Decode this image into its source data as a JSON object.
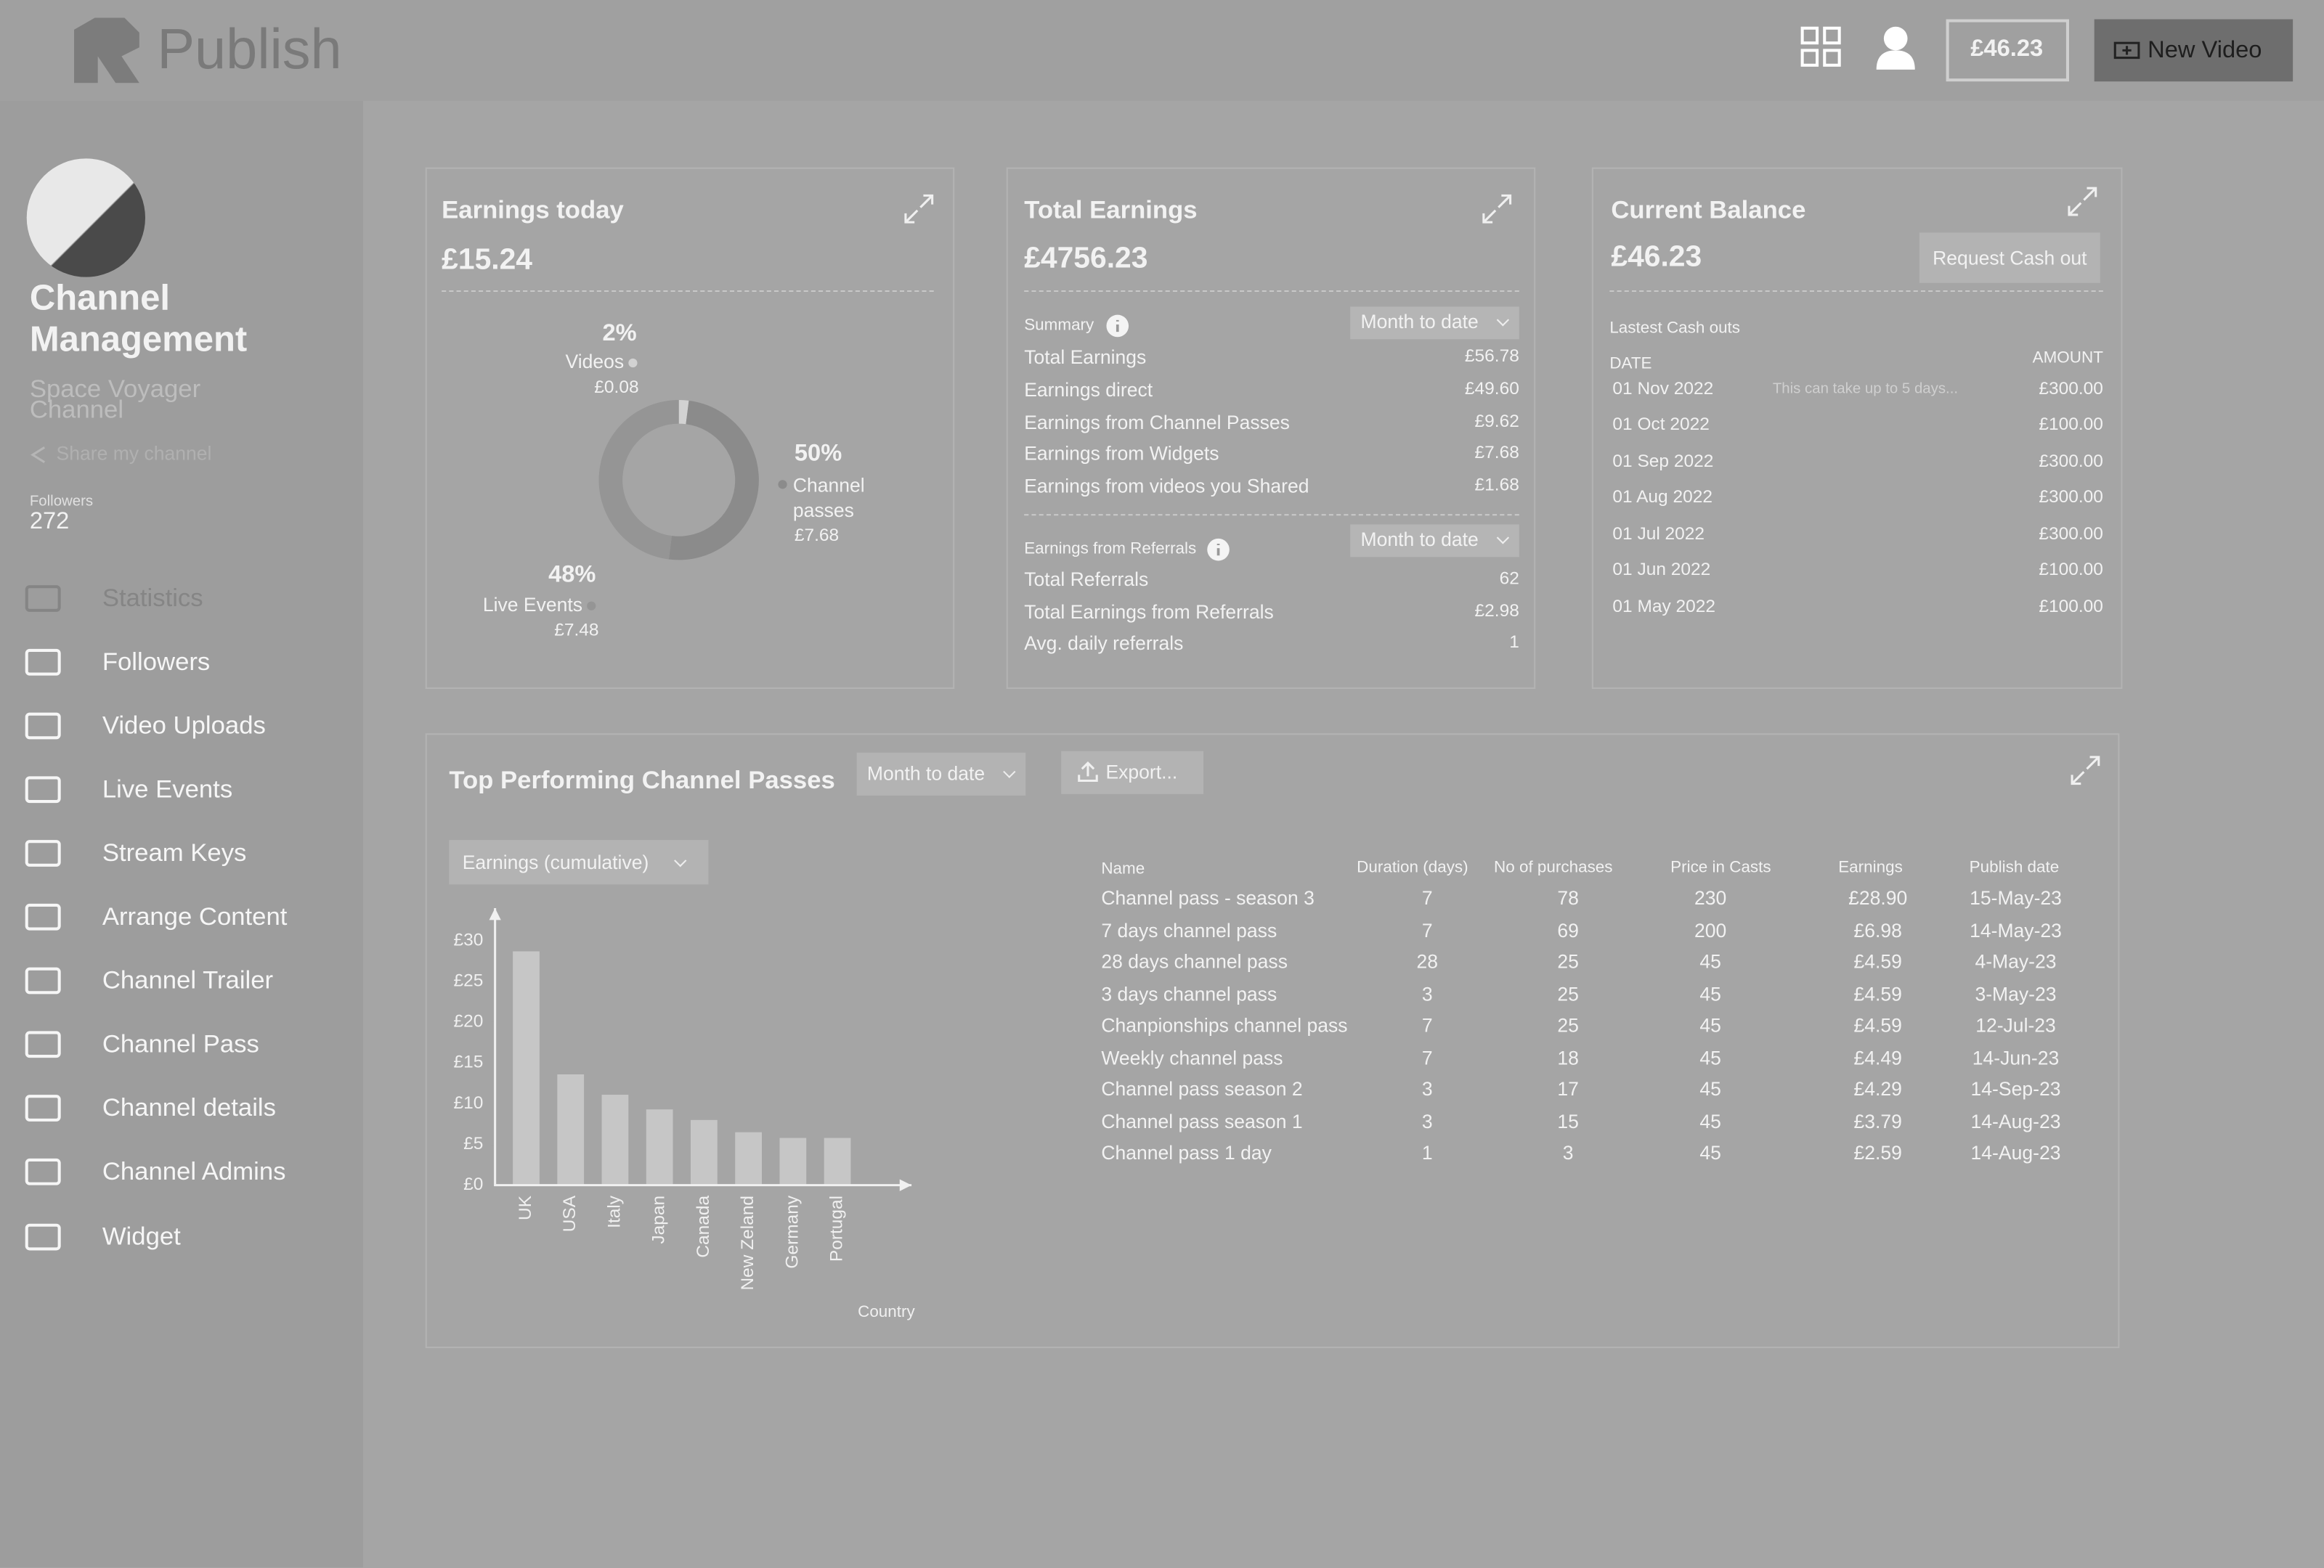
{
  "header": {
    "logo": "Publish",
    "balance": "£46.23",
    "new_video": "New Video"
  },
  "profile": {
    "name": "Channel Management",
    "channel": "Space Voyager Channel",
    "share": "Share my channel",
    "followers_label": "Followers",
    "followers": 272
  },
  "nav": [
    "Statistics",
    "Followers",
    "Video Uploads",
    "Live Events",
    "Stream Keys",
    "Arrange Content",
    "Channel Trailer",
    "Channel Pass",
    "Channel details",
    "Channel Admins",
    "Widget"
  ],
  "earnings_today": {
    "title": "Earnings today",
    "amount": "£15.24"
  },
  "total_earnings": {
    "title": "Total Earnings",
    "amount": "£4756.23",
    "summary_label": "Summary",
    "period": "Month to date",
    "summary": [
      [
        "Total Earnings",
        "£56.78"
      ],
      [
        "Earnings direct",
        "£49.60"
      ],
      [
        "Earnings from Channel Passes",
        "£9.62"
      ],
      [
        "Earnings from Widgets",
        "£7.68"
      ],
      [
        "Earnings from videos you Shared",
        "£1.68"
      ]
    ],
    "referrals_label": "Earnings from Referrals",
    "referrals_period": "Month to date",
    "referrals": [
      [
        "Total Referrals",
        62
      ],
      [
        "Total Earnings from Referrals",
        "£2.98"
      ],
      [
        "Avg. daily referrals",
        1
      ]
    ]
  },
  "current_balance": {
    "title": "Current Balance",
    "amount": "£46.23",
    "button": "Request Cash out",
    "latest": "Lastest Cash outs",
    "columns": [
      "DATE",
      "AMOUNT"
    ],
    "note": "This can take up to 5 days...",
    "rows": [
      [
        "01 Nov 2022",
        "£300.00"
      ],
      [
        "01 Oct 2022",
        "£100.00"
      ],
      [
        "01 Sep 2022",
        "£300.00"
      ],
      [
        "01 Aug 2022",
        "£300.00"
      ],
      [
        "01 Jul 2022",
        "£300.00"
      ],
      [
        "01 Jun 2022",
        "£100.00"
      ],
      [
        "01 May 2022",
        "£100.00"
      ]
    ]
  },
  "top_passes": {
    "title": "Top Performing Channel Passes",
    "period": "Month to date",
    "export": "Export...",
    "metric": "Earnings (cumulative)",
    "table": {
      "columns": [
        "Name",
        "Duration (days)",
        "No of purchases",
        "Price in Casts",
        "Earnings",
        "Publish date"
      ],
      "rows": [
        [
          "Channel pass - season 3",
          7,
          78,
          230,
          "£28.90",
          "15-May-23"
        ],
        [
          "7 days channel pass",
          7,
          69,
          200,
          "£6.98",
          "14-May-23"
        ],
        [
          "28 days channel pass",
          28,
          25,
          45,
          "£4.59",
          "4-May-23"
        ],
        [
          "3 days channel pass",
          3,
          25,
          45,
          "£4.59",
          "3-May-23"
        ],
        [
          "Chanpionships channel pass",
          7,
          25,
          45,
          "£4.59",
          "12-Jul-23"
        ],
        [
          "Weekly channel pass",
          7,
          18,
          45,
          "£4.49",
          "14-Jun-23"
        ],
        [
          "Channel pass season 2",
          3,
          17,
          45,
          "£4.29",
          "14-Sep-23"
        ],
        [
          "Channel pass season 1",
          3,
          15,
          45,
          "£3.79",
          "14-Aug-23"
        ],
        [
          "Channel pass 1 day",
          1,
          3,
          45,
          "£2.59",
          "14-Aug-23"
        ]
      ]
    }
  },
  "chart_data": [
    {
      "type": "pie",
      "categories": [
        "Videos",
        "Channel passes",
        "Live Events"
      ],
      "values": [
        2,
        50,
        48
      ],
      "value_labels": [
        "2%",
        "50%",
        "48%"
      ],
      "amounts": [
        "£0.08",
        "£7.68",
        "£7.48"
      ],
      "colors": [
        "#d2d2d2",
        "#8b8b8b",
        "#959595"
      ]
    },
    {
      "type": "bar",
      "categories": [
        "UK",
        "USA",
        "Italy",
        "Japan",
        "Canada",
        "New Zeland",
        "Germany",
        "Portugal"
      ],
      "values": [
        28.7,
        13.6,
        11.1,
        9.3,
        8,
        6.5,
        5.8,
        5.8
      ],
      "color": "#c6c6c6",
      "ylim": [
        0,
        34
      ],
      "yticks": [
        {
          "value": 0,
          "label": "£0"
        },
        {
          "value": 5,
          "label": "£5"
        },
        {
          "value": 10,
          "label": "£10"
        },
        {
          "value": 15,
          "label": "£15"
        },
        {
          "value": 20,
          "label": "£20"
        },
        {
          "value": 25,
          "label": "£25"
        },
        {
          "value": 30,
          "label": "£30"
        }
      ],
      "x_label": "Country"
    }
  ]
}
